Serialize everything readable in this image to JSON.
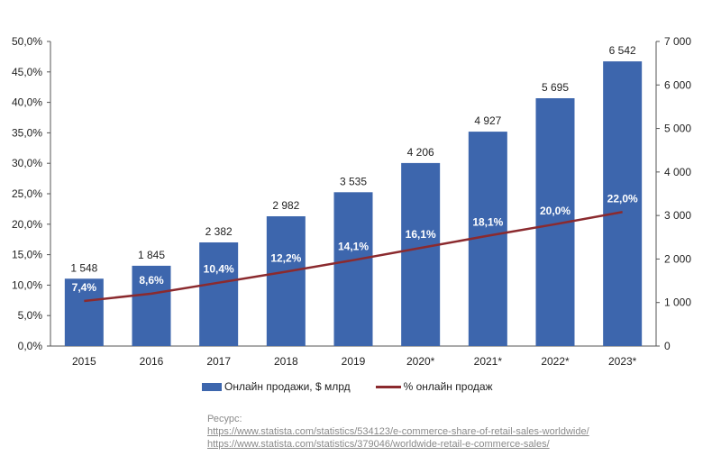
{
  "chart_data": {
    "type": "bar+line",
    "categories": [
      "2015",
      "2016",
      "2017",
      "2018",
      "2019",
      "2020*",
      "2021*",
      "2022*",
      "2023*"
    ],
    "series": [
      {
        "name": "Онлайн продажи, $ млрд",
        "type": "bar",
        "axis": "right",
        "values": [
          1548,
          1845,
          2382,
          2982,
          3535,
          4206,
          4927,
          5695,
          6542
        ],
        "labels": [
          "1 548",
          "1 845",
          "2 382",
          "2 982",
          "3 535",
          "4 206",
          "4 927",
          "5 695",
          "6 542"
        ],
        "color": "#3d66ad"
      },
      {
        "name": "% онлайн продаж",
        "type": "line",
        "axis": "left",
        "values": [
          7.4,
          8.6,
          10.4,
          12.2,
          14.1,
          16.1,
          18.1,
          20.0,
          22.0
        ],
        "labels": [
          "7,4%",
          "8,6%",
          "10,4%",
          "12,2%",
          "14,1%",
          "16,1%",
          "18,1%",
          "20,0%",
          "22,0%"
        ],
        "color": "#8b2a2e"
      }
    ],
    "y_left": {
      "ylim": [
        0,
        50
      ],
      "ticks": [
        "0,0%",
        "5,0%",
        "10,0%",
        "15,0%",
        "20,0%",
        "25,0%",
        "30,0%",
        "35,0%",
        "40,0%",
        "45,0%",
        "50,0%"
      ]
    },
    "y_right": {
      "ylim": [
        0,
        7000
      ],
      "ticks": [
        "0",
        "1 000",
        "2 000",
        "3 000",
        "4 000",
        "5 000",
        "6 000",
        "7 000"
      ]
    },
    "grid": false,
    "legend_position": "bottom"
  },
  "legend": {
    "bar_label": "Онлайн продажи, $ млрд",
    "line_label": "% онлайн продаж"
  },
  "source": {
    "title": "Ресурс:",
    "links": [
      "https://www.statista.com/statistics/534123/e-commerce-share-of-retail-sales-worldwide/",
      "https://www.statista.com/statistics/379046/worldwide-retail-e-commerce-sales/"
    ]
  }
}
